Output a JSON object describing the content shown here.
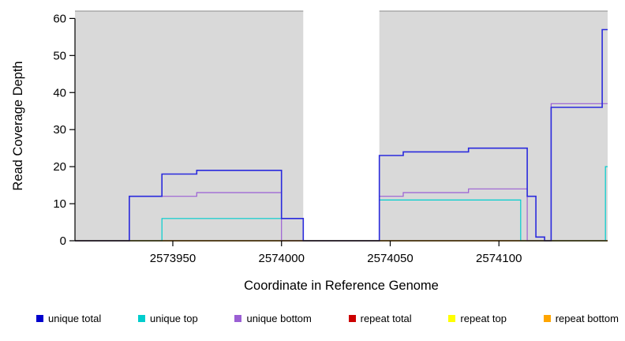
{
  "chart_data": {
    "type": "line",
    "subtype": "step-coverage",
    "title": "",
    "xlabel": "Coordinate in Reference Genome",
    "ylabel": "Read Coverage Depth",
    "xlim": [
      2573905,
      2574150
    ],
    "ylim": [
      0,
      62
    ],
    "xticks": [
      2573950,
      2574000,
      2574050,
      2574100
    ],
    "yticks": [
      0,
      10,
      20,
      30,
      40,
      50,
      60
    ],
    "grid": false,
    "shaded_regions": [
      {
        "x1": 2573905,
        "x2": 2574010,
        "color": "#D9D9D9"
      },
      {
        "x1": 2574045,
        "x2": 2574150,
        "color": "#D9D9D9"
      }
    ],
    "series": [
      {
        "name": "unique total",
        "color": "#2A2ADD",
        "width": 1.6,
        "draw": 5,
        "steps": [
          [
            2573905,
            2573930,
            0
          ],
          [
            2573930,
            2573945,
            12
          ],
          [
            2573945,
            2573961,
            18
          ],
          [
            2573961,
            2574000,
            19
          ],
          [
            2574000,
            2574010,
            6
          ],
          [
            2574010,
            2574045,
            0
          ],
          [
            2574045,
            2574056,
            23
          ],
          [
            2574056,
            2574086,
            24
          ],
          [
            2574086,
            2574113,
            25
          ],
          [
            2574113,
            2574117,
            12
          ],
          [
            2574117,
            2574121,
            1
          ],
          [
            2574121,
            2574124,
            0
          ],
          [
            2574124,
            2574147.5,
            36
          ],
          [
            2574147.5,
            2574150,
            57
          ]
        ]
      },
      {
        "name": "unique top",
        "color": "#00CDCD",
        "width": 1.2,
        "draw": 3,
        "steps": [
          [
            2573905,
            2573945,
            0
          ],
          [
            2573945,
            2574010,
            6
          ],
          [
            2574010,
            2574045,
            0
          ],
          [
            2574045,
            2574110,
            11
          ],
          [
            2574110,
            2574149,
            0
          ],
          [
            2574149,
            2574150,
            20
          ]
        ]
      },
      {
        "name": "unique bottom",
        "color": "#9B5FD4",
        "width": 1.2,
        "draw": 4,
        "steps": [
          [
            2573905,
            2573930,
            0
          ],
          [
            2573930,
            2573961,
            12
          ],
          [
            2573961,
            2574000,
            13
          ],
          [
            2574000,
            2574045,
            0
          ],
          [
            2574045,
            2574056,
            12
          ],
          [
            2574056,
            2574086,
            13
          ],
          [
            2574086,
            2574113,
            14
          ],
          [
            2574113,
            2574124,
            0
          ],
          [
            2574124,
            2574150,
            37
          ]
        ]
      },
      {
        "name": "repeat total",
        "color": "#CC0000",
        "width": 1.2,
        "draw": 1,
        "steps": [
          [
            2573905,
            2574150,
            0
          ]
        ]
      },
      {
        "name": "repeat top",
        "color": "#FFFF00",
        "width": 1.2,
        "draw": 2,
        "steps": [
          [
            2573905,
            2574150,
            0
          ]
        ]
      },
      {
        "name": "repeat bottom",
        "color": "#FFA500",
        "width": 1.3,
        "draw": 6,
        "steps": [
          [
            2573905,
            2574150,
            0
          ]
        ]
      }
    ],
    "legend_position": "bottom"
  },
  "legend": {
    "items": [
      {
        "label": "unique total",
        "color": "#0000CD"
      },
      {
        "label": "unique top",
        "color": "#00CDCD"
      },
      {
        "label": "unique bottom",
        "color": "#9B5FD4"
      },
      {
        "label": "repeat total",
        "color": "#CC0000"
      },
      {
        "label": "repeat top",
        "color": "#FFFF00"
      },
      {
        "label": "repeat bottom",
        "color": "#FFA500"
      }
    ]
  }
}
